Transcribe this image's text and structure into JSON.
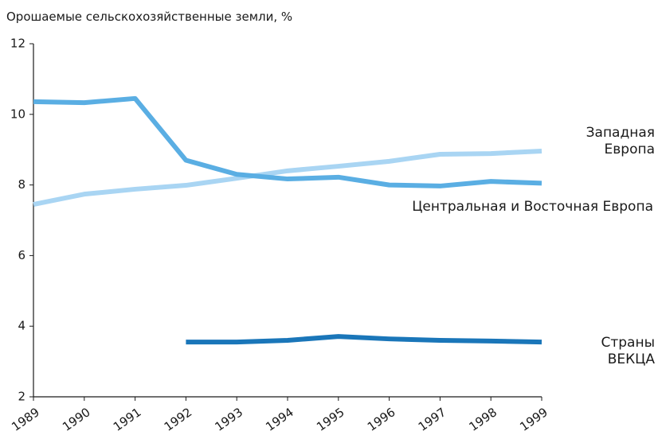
{
  "chart_data": {
    "type": "line",
    "title": "Орошаемые сельскохозяйственные земли, %",
    "x": [
      1989,
      1990,
      1991,
      1992,
      1993,
      1994,
      1995,
      1996,
      1997,
      1998,
      1999
    ],
    "xlim": [
      1989,
      1999
    ],
    "xticks": [
      1989,
      1990,
      1991,
      1992,
      1993,
      1994,
      1995,
      1996,
      1997,
      1998,
      1999
    ],
    "ylim": [
      2,
      12
    ],
    "yticks": [
      2,
      4,
      6,
      8,
      10,
      12
    ],
    "series": [
      {
        "name": "Западная Европа",
        "color": "#a9d5f3",
        "values": [
          7.45,
          7.74,
          7.88,
          7.99,
          8.19,
          8.4,
          8.53,
          8.67,
          8.87,
          8.89,
          8.96
        ]
      },
      {
        "name": "Центральная и Восточная Европа",
        "color": "#5aaee3",
        "values": [
          10.36,
          10.33,
          10.45,
          8.7,
          8.3,
          8.17,
          8.22,
          8.0,
          7.97,
          8.1,
          8.05
        ]
      },
      {
        "name": "Страны ВЕКЦА",
        "color": "#1a76b9",
        "values": [
          null,
          null,
          null,
          3.55,
          3.55,
          3.6,
          3.71,
          3.64,
          3.6,
          3.58,
          3.55
        ]
      }
    ]
  }
}
